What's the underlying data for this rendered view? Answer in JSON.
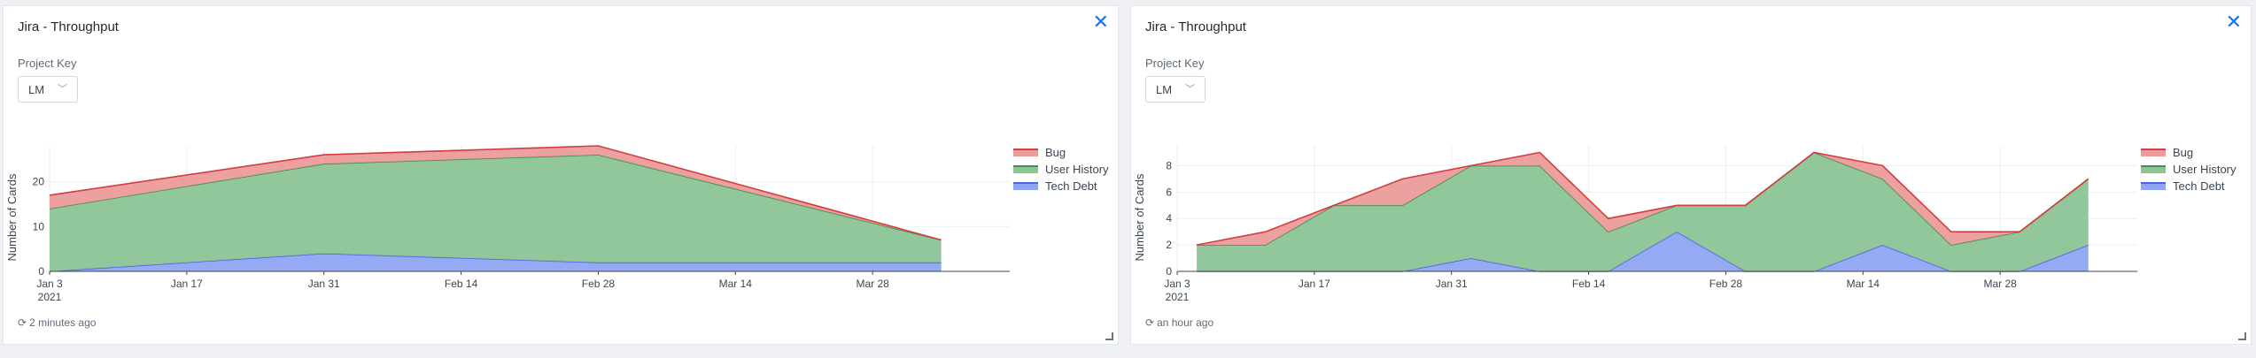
{
  "panels": [
    {
      "title": "Jira - Throughput",
      "project_label": "Project Key",
      "project_value": "LM",
      "updated": "2 minutes ago",
      "chart_data": {
        "type": "area",
        "stacked": true,
        "ylabel": "Number of Cards",
        "ylim": [
          0,
          28
        ],
        "yticks": [
          0,
          10,
          20
        ],
        "xticks": [
          "Jan 3\n2021",
          "Jan 17",
          "Jan 31",
          "Feb 14",
          "Feb 28",
          "Mar 14",
          "Mar 28"
        ],
        "xdomain": [
          "2021-01-03",
          "2021-04-11"
        ],
        "x": [
          "2021-01-03",
          "2021-01-31",
          "2021-02-28",
          "2021-04-04"
        ],
        "series": [
          {
            "name": "Tech Debt",
            "color": "#8fa4f3",
            "line": "#4d63e8",
            "values": [
              0,
              4,
              2,
              2
            ]
          },
          {
            "name": "User History",
            "color": "#8cc496",
            "line": "#3f8f4e",
            "values": [
              14,
              20,
              24,
              5
            ]
          },
          {
            "name": "Bug",
            "color": "#ec9b9b",
            "line": "#d43d3d",
            "values": [
              3,
              2,
              2,
              0
            ]
          }
        ],
        "legend": "top-right",
        "grid": true
      }
    },
    {
      "title": "Jira - Throughput",
      "project_label": "Project Key",
      "project_value": "LM",
      "updated": "an hour ago",
      "chart_data": {
        "type": "area",
        "stacked": true,
        "ylabel": "Number of Cards",
        "ylim": [
          0,
          9.5
        ],
        "yticks": [
          0,
          2,
          4,
          6,
          8
        ],
        "xticks": [
          "Jan 3\n2021",
          "Jan 17",
          "Jan 31",
          "Feb 14",
          "Feb 28",
          "Mar 14",
          "Mar 28"
        ],
        "xdomain": [
          "2021-01-03",
          "2021-04-11"
        ],
        "x": [
          "2021-01-05",
          "2021-01-12",
          "2021-01-19",
          "2021-01-26",
          "2021-02-02",
          "2021-02-09",
          "2021-02-16",
          "2021-02-23",
          "2021-03-02",
          "2021-03-09",
          "2021-03-16",
          "2021-03-23",
          "2021-03-30",
          "2021-04-06"
        ],
        "series": [
          {
            "name": "Tech Debt",
            "color": "#8fa4f3",
            "line": "#4d63e8",
            "values": [
              0,
              0,
              0,
              0,
              1,
              0,
              0,
              3,
              0,
              0,
              2,
              0,
              0,
              2
            ]
          },
          {
            "name": "User History",
            "color": "#8cc496",
            "line": "#3f8f4e",
            "values": [
              2,
              2,
              5,
              5,
              7,
              8,
              3,
              2,
              5,
              9,
              5,
              2,
              3,
              5
            ]
          },
          {
            "name": "Bug",
            "color": "#ec9b9b",
            "line": "#d43d3d",
            "values": [
              0,
              1,
              0,
              2,
              0,
              1,
              1,
              0,
              0,
              0,
              1,
              1,
              0,
              0
            ]
          }
        ],
        "legend": "top-right",
        "grid": true
      }
    }
  ]
}
